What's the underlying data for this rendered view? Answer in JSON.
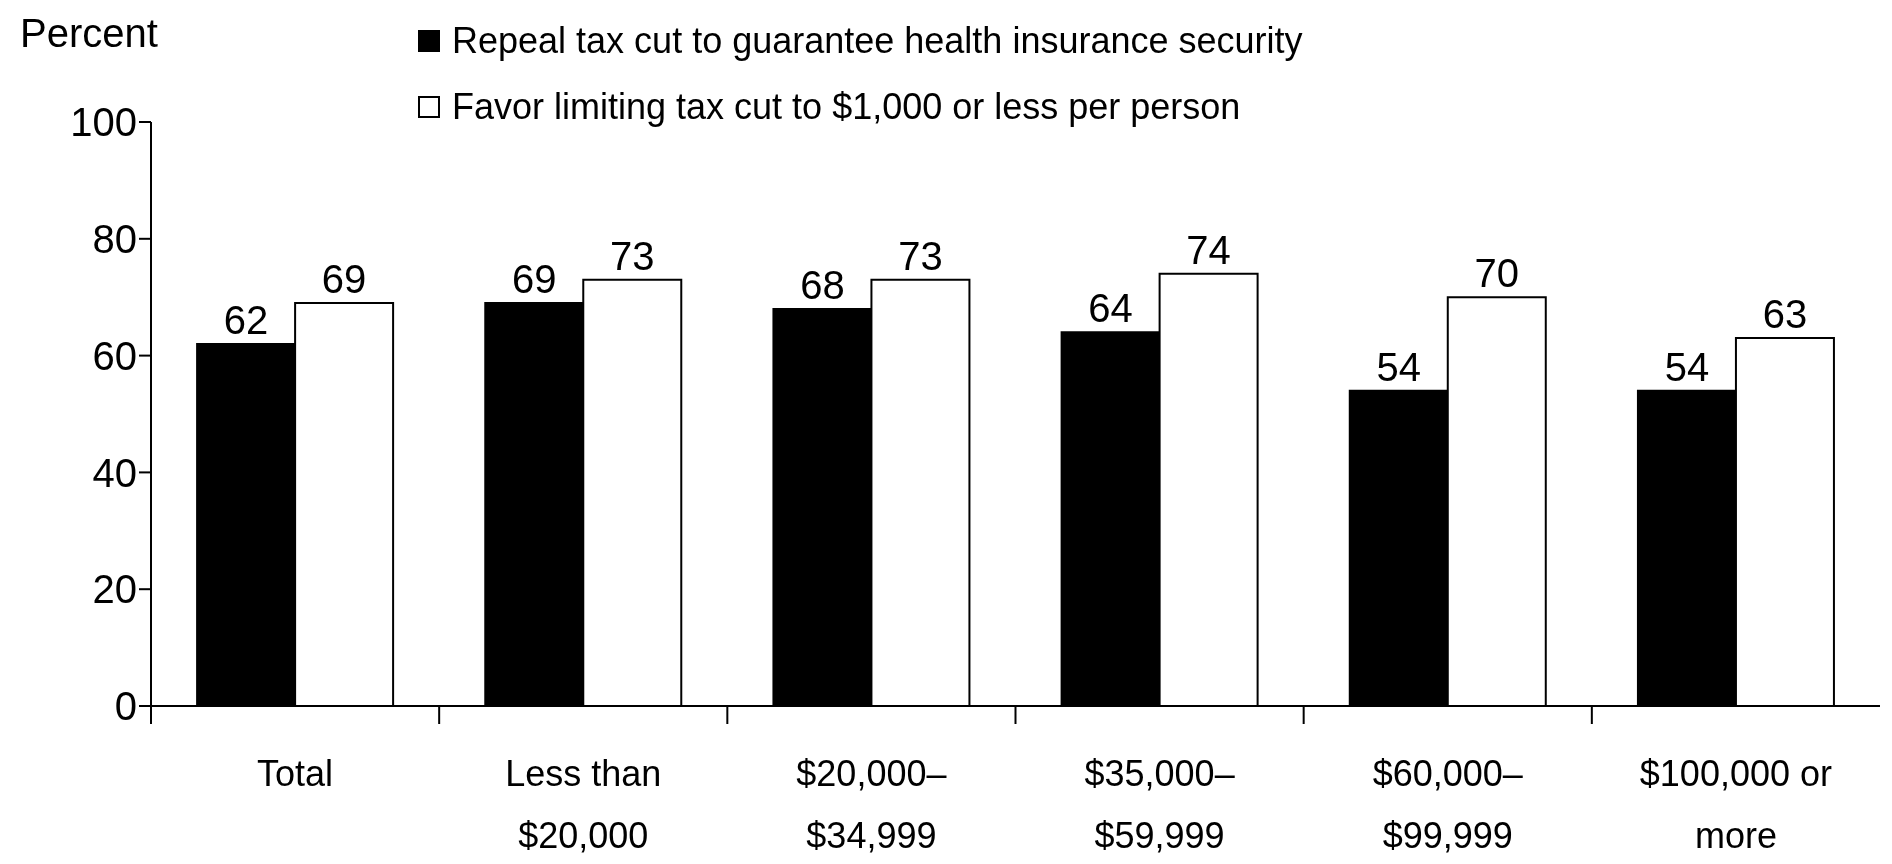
{
  "chart_data": {
    "type": "bar",
    "ylabel": "Percent",
    "categories": [
      "Total",
      "Less than $20,000",
      "$20,000–$34,999",
      "$35,000–$59,999",
      "$60,000–$99,999",
      "$100,000 or more"
    ],
    "series": [
      {
        "name": "Repeal tax cut to guarantee health insurance security",
        "color": "#000000",
        "values": [
          62,
          69,
          68,
          64,
          54,
          54
        ]
      },
      {
        "name": "Favor limiting tax cut to $1,000 or less per person",
        "color": "#ffffff",
        "values": [
          69,
          73,
          73,
          74,
          70,
          63
        ]
      }
    ],
    "ylim": [
      0,
      100
    ],
    "yticks": [
      0,
      20,
      40,
      60,
      80,
      100
    ],
    "grid": false,
    "legend": "top",
    "data_labels": true
  }
}
